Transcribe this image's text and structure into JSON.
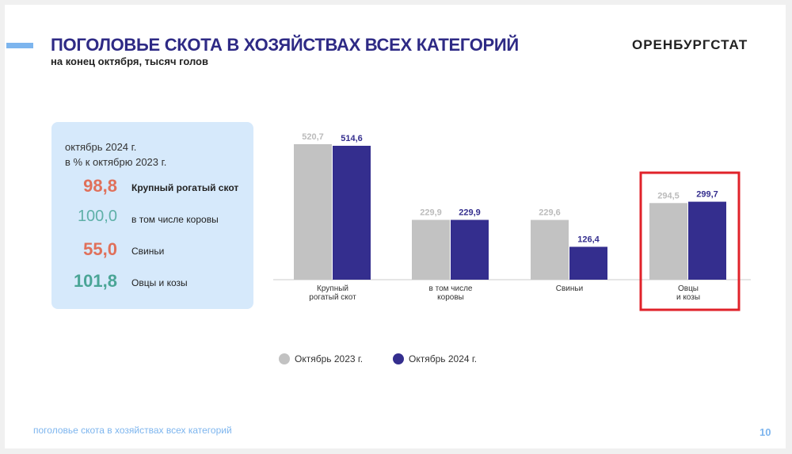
{
  "header": {
    "title": "ПОГОЛОВЬЕ СКОТА В ХОЗЯЙСТВАХ ВСЕХ КАТЕГОРИЙ",
    "subtitle": "на конец октября, тысяч голов",
    "logo": "ОРЕНБУРГСТАТ"
  },
  "panel": {
    "line1": "октябрь 2024 г.",
    "line2": "в % к октябрю 2023 г.",
    "items": [
      {
        "value": "98,8",
        "label": "Крупный рогатый скот",
        "color": "#e0705a"
      },
      {
        "value": "100,0",
        "label": "в том числе коровы",
        "color": "#5fb0a8"
      },
      {
        "value": "55,0",
        "label": "Свиньи",
        "color": "#e0705a"
      },
      {
        "value": "101,8",
        "label": "Овцы и козы",
        "color": "#4aa596"
      }
    ]
  },
  "chart_data": {
    "type": "bar",
    "categories": [
      "Крупный\nрогатый скот",
      "в том числе\nкоровы",
      "Свиньи",
      "Овцы\nи козы"
    ],
    "series": [
      {
        "name": "Октябрь 2023 г.",
        "color": "#c2c2c2",
        "values": [
          520.7,
          229.9,
          229.6,
          294.5
        ],
        "labels": [
          "520,7",
          "229,9",
          "229,6",
          "294,5"
        ]
      },
      {
        "name": "Октябрь 2024 г.",
        "color": "#342e8e",
        "values": [
          514.6,
          229.9,
          126.4,
          299.7
        ],
        "labels": [
          "514,6",
          "229,9",
          "126,4",
          "299,7"
        ]
      }
    ],
    "highlight_category": 3,
    "ylim": [
      0,
      520.7
    ]
  },
  "footer": {
    "text": "поголовье скота в хозяйствах всех категорий",
    "page": "10"
  }
}
